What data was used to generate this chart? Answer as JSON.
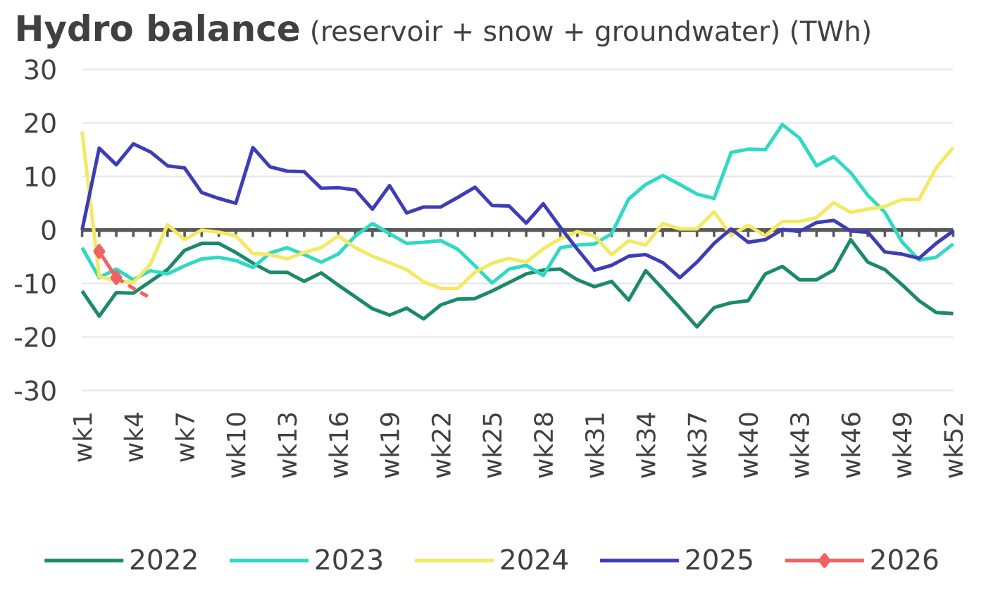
{
  "chart_data": {
    "type": "line",
    "title": "Hydro balance",
    "subtitle": "(reservoir + snow + groundwater) (TWh)",
    "categories": [
      "wk1",
      null,
      null,
      "wk4",
      null,
      null,
      "wk7",
      null,
      null,
      "wk10",
      null,
      null,
      "wk13",
      null,
      null,
      "wk16",
      null,
      null,
      "wk19",
      null,
      null,
      "wk22",
      null,
      null,
      "wk25",
      null,
      null,
      "wk28",
      null,
      null,
      "wk31",
      null,
      null,
      "wk34",
      null,
      null,
      "wk37",
      null,
      null,
      "wk40",
      null,
      null,
      "wk43",
      null,
      null,
      "wk46",
      null,
      null,
      "wk49",
      null,
      null,
      "wk52"
    ],
    "series": [
      {
        "name": "2022",
        "color": "#1b8a6b",
        "values": [
          -11.4,
          -16.1,
          -11.7,
          -11.8,
          -9.6,
          -7.4,
          -3.8,
          -2.5,
          -2.5,
          -4.2,
          -6.2,
          -7.9,
          -7.9,
          -9.6,
          -8.0,
          -10.3,
          -12.5,
          -14.7,
          -15.9,
          -14.6,
          -16.6,
          -14.0,
          -12.9,
          -12.8,
          -11.4,
          -9.8,
          -8.2,
          -7.5,
          -7.3,
          -9.3,
          -10.6,
          -9.6,
          -13.1,
          -7.6,
          -11.0,
          -14.5,
          -18.1,
          -14.5,
          -13.6,
          -13.2,
          -8.2,
          -6.8,
          -9.3,
          -9.3,
          -7.5,
          -1.8,
          -6.0,
          -7.4,
          -10.2,
          -13.2,
          -15.4,
          -15.6
        ]
      },
      {
        "name": "2023",
        "color": "#2fd9c4",
        "values": [
          -3.3,
          -8.9,
          -7.3,
          -9.3,
          -7.6,
          -8.2,
          -6.7,
          -5.4,
          -5.1,
          -5.7,
          -7.0,
          -4.3,
          -3.3,
          -4.6,
          -6.0,
          -4.5,
          -1.1,
          1.2,
          -0.7,
          -2.5,
          -2.3,
          -2.0,
          -3.6,
          -6.7,
          -9.9,
          -7.3,
          -6.6,
          -8.5,
          -3.3,
          -2.8,
          -2.6,
          -0.7,
          5.8,
          8.5,
          10.2,
          8.5,
          6.7,
          5.9,
          14.5,
          15.1,
          15.0,
          19.7,
          17.2,
          12.0,
          13.7,
          10.7,
          6.5,
          3.3,
          -2.2,
          -5.6,
          -5.1,
          -2.6
        ]
      },
      {
        "name": "2024",
        "color": "#f3e963",
        "values": [
          18.4,
          -8.7,
          -9.5,
          -9.8,
          -6.4,
          1.0,
          -1.8,
          0.0,
          -0.4,
          -1.1,
          -4.4,
          -4.6,
          -5.4,
          -4.2,
          -3.3,
          -1.1,
          -3.3,
          -4.9,
          -6.1,
          -7.4,
          -9.7,
          -10.9,
          -10.9,
          -7.9,
          -6.2,
          -5.3,
          -6.0,
          -3.5,
          -1.6,
          -0.3,
          -1.1,
          -4.6,
          -2.0,
          -2.8,
          1.2,
          0.2,
          0.2,
          3.4,
          -1.0,
          0.9,
          -1.1,
          1.6,
          1.6,
          2.3,
          5.1,
          3.3,
          3.9,
          4.4,
          5.7,
          5.7,
          11.6,
          15.4
        ]
      },
      {
        "name": "2025",
        "color": "#3f3cb8",
        "values": [
          0.0,
          15.3,
          12.2,
          16.1,
          14.6,
          12.0,
          11.6,
          7.0,
          5.9,
          5.0,
          15.4,
          11.8,
          11.0,
          10.9,
          7.8,
          7.9,
          7.5,
          3.9,
          8.3,
          3.2,
          4.3,
          4.3,
          6.1,
          8.0,
          4.6,
          4.5,
          1.3,
          4.9,
          0.5,
          -3.6,
          -7.5,
          -6.6,
          -4.9,
          -4.6,
          -6.1,
          -8.9,
          -6.0,
          -2.5,
          0.2,
          -2.3,
          -1.8,
          0.1,
          -0.3,
          1.4,
          1.8,
          -0.2,
          -0.4,
          -4.1,
          -4.5,
          -5.3,
          -2.5,
          -0.2
        ]
      },
      {
        "name": "2026",
        "color": "#f06262",
        "marker": "diamond",
        "values": [
          null,
          -4.0,
          -8.9,
          null,
          null,
          null,
          null,
          null,
          null,
          null,
          null,
          null,
          null,
          null,
          null,
          null,
          null,
          null,
          null,
          null,
          null,
          null,
          null,
          null,
          null,
          null,
          null,
          null,
          null,
          null,
          null,
          null,
          null,
          null,
          null,
          null,
          null,
          null,
          null,
          null,
          null,
          null,
          null,
          null,
          null,
          null,
          null,
          null,
          null,
          null,
          null,
          null
        ]
      },
      {
        "color": "#f06262",
        "line_style": "dashed",
        "values": [
          null,
          null,
          -8.9,
          -10.9,
          -12.7,
          null,
          null,
          null,
          null,
          null,
          null,
          null,
          null,
          null,
          null,
          null,
          null,
          null,
          null,
          null,
          null,
          null,
          null,
          null,
          null,
          null,
          null,
          null,
          null,
          null,
          null,
          null,
          null,
          null,
          null,
          null,
          null,
          null,
          null,
          null,
          null,
          null,
          null,
          null,
          null,
          null,
          null,
          null,
          null,
          null,
          null,
          null
        ]
      }
    ],
    "ylim": [
      -30,
      30
    ],
    "yticks": [
      -30,
      -20,
      -10,
      0,
      10,
      20,
      30
    ],
    "grid": "y",
    "legend": "bottom"
  }
}
